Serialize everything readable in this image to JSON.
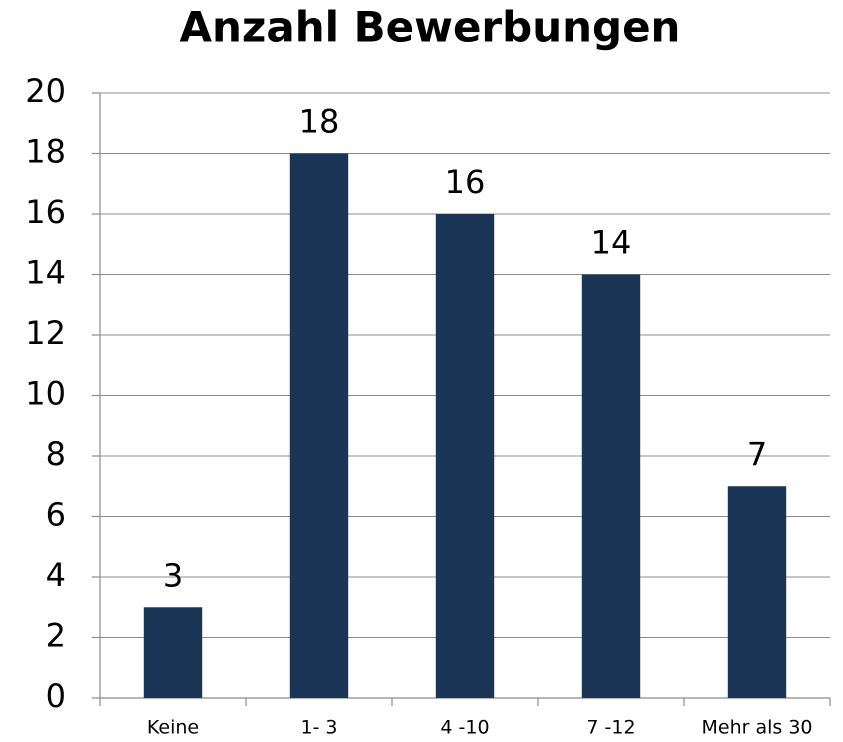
{
  "chart_data": {
    "type": "bar",
    "title": "Anzahl Bewerbungen",
    "categories": [
      "Keine",
      "1- 3",
      "4 -10",
      "7 -12",
      "Mehr als 30"
    ],
    "values": [
      3,
      18,
      16,
      14,
      7
    ],
    "color": "#1b3556",
    "ylim": [
      0,
      20
    ],
    "yticks": [
      0,
      2,
      4,
      6,
      8,
      10,
      12,
      14,
      16,
      18,
      20
    ],
    "grid": true
  }
}
